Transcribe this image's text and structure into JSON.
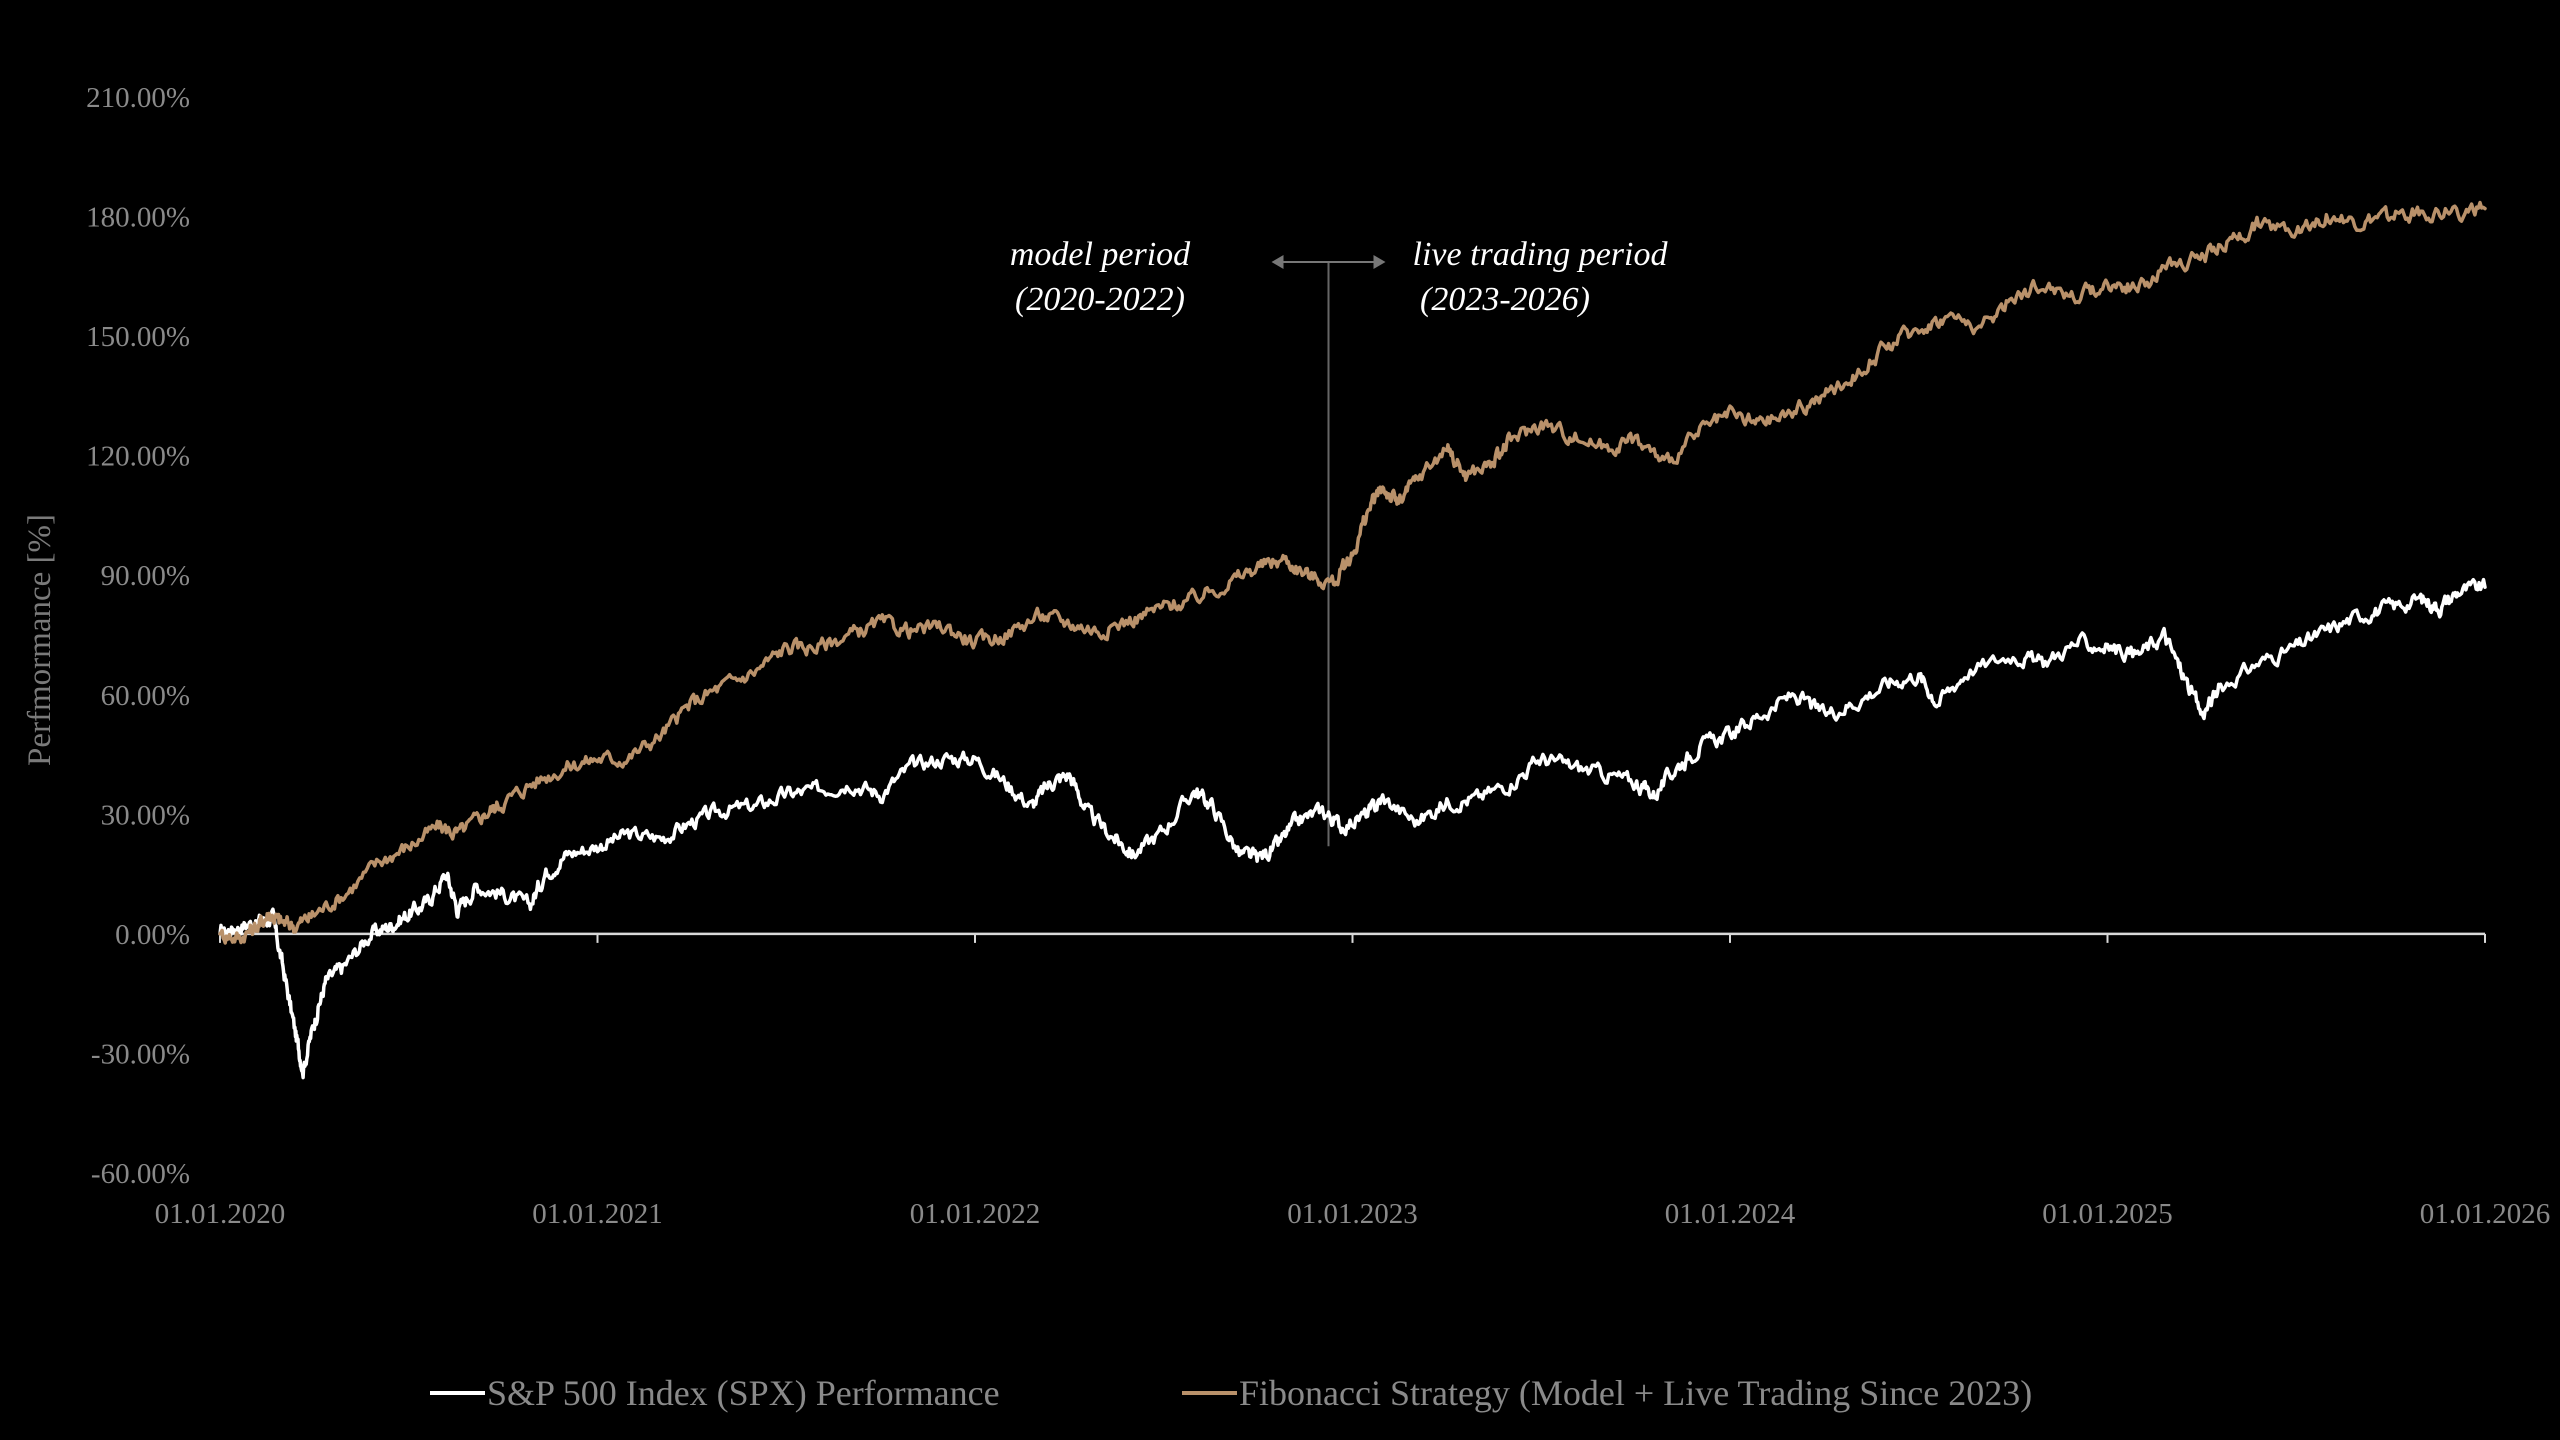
{
  "chart_data": {
    "type": "line",
    "title": "",
    "xlabel": "",
    "ylabel": "Perfmormance [%]",
    "x_tick_labels": [
      "01.01.2020",
      "01.01.2021",
      "01.01.2022",
      "01.01.2023",
      "01.01.2024",
      "01.01.2025",
      "01.01.2026"
    ],
    "y_tick_labels": [
      "210.00%",
      "180.00%",
      "150.00%",
      "120.00%",
      "90.00%",
      "60.00%",
      "30.00%",
      "0.00%",
      "-30.00%",
      "-60.00%"
    ],
    "ylim": [
      -60,
      210
    ],
    "xlim": [
      2020.0,
      2026.0
    ],
    "grid": false,
    "legend_position": "bottom-center",
    "annotations": {
      "left_line1": "model period",
      "left_line2": "(2020-2022)",
      "right_line1": "live trading period",
      "right_line2": "(2023-2026)",
      "divider_x": 2023.0
    },
    "series": [
      {
        "name": "S&P 500 Index (SPX) Performance",
        "color": "#ffffff",
        "points": [
          [
            2020.0,
            0
          ],
          [
            2020.05,
            2
          ],
          [
            2020.1,
            3
          ],
          [
            2020.14,
            4
          ],
          [
            2020.17,
            -10
          ],
          [
            2020.2,
            -25
          ],
          [
            2020.22,
            -34
          ],
          [
            2020.25,
            -22
          ],
          [
            2020.28,
            -12
          ],
          [
            2020.33,
            -8
          ],
          [
            2020.4,
            0
          ],
          [
            2020.45,
            2
          ],
          [
            2020.5,
            5
          ],
          [
            2020.55,
            8
          ],
          [
            2020.6,
            15
          ],
          [
            2020.63,
            6
          ],
          [
            2020.68,
            12
          ],
          [
            2020.75,
            10
          ],
          [
            2020.82,
            7
          ],
          [
            2020.86,
            15
          ],
          [
            2020.92,
            20
          ],
          [
            2021.0,
            22
          ],
          [
            2021.08,
            25
          ],
          [
            2021.17,
            24
          ],
          [
            2021.25,
            28
          ],
          [
            2021.33,
            31
          ],
          [
            2021.42,
            32
          ],
          [
            2021.5,
            35
          ],
          [
            2021.58,
            36
          ],
          [
            2021.67,
            38
          ],
          [
            2021.75,
            35
          ],
          [
            2021.83,
            42
          ],
          [
            2021.92,
            44
          ],
          [
            2022.0,
            44
          ],
          [
            2022.08,
            38
          ],
          [
            2022.15,
            32
          ],
          [
            2022.2,
            38
          ],
          [
            2022.25,
            40
          ],
          [
            2022.3,
            30
          ],
          [
            2022.37,
            24
          ],
          [
            2022.42,
            20
          ],
          [
            2022.5,
            26
          ],
          [
            2022.58,
            36
          ],
          [
            2022.63,
            32
          ],
          [
            2022.7,
            20
          ],
          [
            2022.75,
            19
          ],
          [
            2022.8,
            22
          ],
          [
            2022.85,
            28
          ],
          [
            2022.92,
            31
          ],
          [
            2022.97,
            27
          ],
          [
            2023.04,
            30
          ],
          [
            2023.08,
            34
          ],
          [
            2023.17,
            28
          ],
          [
            2023.25,
            33
          ],
          [
            2023.33,
            34
          ],
          [
            2023.42,
            38
          ],
          [
            2023.5,
            44
          ],
          [
            2023.58,
            42
          ],
          [
            2023.67,
            40
          ],
          [
            2023.75,
            38
          ],
          [
            2023.8,
            35
          ],
          [
            2023.86,
            42
          ],
          [
            2023.92,
            47
          ],
          [
            2024.0,
            50
          ],
          [
            2024.08,
            55
          ],
          [
            2024.17,
            60
          ],
          [
            2024.25,
            55
          ],
          [
            2024.33,
            58
          ],
          [
            2024.42,
            63
          ],
          [
            2024.5,
            65
          ],
          [
            2024.55,
            58
          ],
          [
            2024.63,
            66
          ],
          [
            2024.75,
            70
          ],
          [
            2024.83,
            68
          ],
          [
            2024.92,
            73
          ],
          [
            2025.0,
            72
          ],
          [
            2025.08,
            70
          ],
          [
            2025.15,
            75
          ],
          [
            2025.2,
            65
          ],
          [
            2025.25,
            55
          ],
          [
            2025.3,
            62
          ],
          [
            2025.4,
            68
          ],
          [
            2025.5,
            72
          ],
          [
            2025.58,
            76
          ],
          [
            2025.67,
            80
          ],
          [
            2025.75,
            82
          ],
          [
            2025.83,
            84
          ],
          [
            2025.88,
            82
          ],
          [
            2025.93,
            86
          ],
          [
            2026.0,
            87
          ]
        ]
      },
      {
        "name": "Fibonacci Strategy (Model + Live Trading Since 2023)",
        "color": "#b9916a",
        "points": [
          [
            2020.0,
            0
          ],
          [
            2020.05,
            -1
          ],
          [
            2020.1,
            2
          ],
          [
            2020.13,
            5
          ],
          [
            2020.16,
            3
          ],
          [
            2020.2,
            2
          ],
          [
            2020.25,
            5
          ],
          [
            2020.33,
            10
          ],
          [
            2020.42,
            18
          ],
          [
            2020.5,
            22
          ],
          [
            2020.58,
            27
          ],
          [
            2020.63,
            25
          ],
          [
            2020.7,
            30
          ],
          [
            2020.75,
            33
          ],
          [
            2020.83,
            38
          ],
          [
            2020.92,
            42
          ],
          [
            2021.0,
            44
          ],
          [
            2021.08,
            44
          ],
          [
            2021.17,
            50
          ],
          [
            2021.25,
            58
          ],
          [
            2021.33,
            62
          ],
          [
            2021.42,
            66
          ],
          [
            2021.5,
            72
          ],
          [
            2021.58,
            72
          ],
          [
            2021.67,
            75
          ],
          [
            2021.75,
            78
          ],
          [
            2021.83,
            76
          ],
          [
            2021.92,
            77
          ],
          [
            2022.0,
            73
          ],
          [
            2022.08,
            75
          ],
          [
            2022.17,
            80
          ],
          [
            2022.25,
            78
          ],
          [
            2022.33,
            76
          ],
          [
            2022.42,
            79
          ],
          [
            2022.5,
            82
          ],
          [
            2022.58,
            84
          ],
          [
            2022.67,
            88
          ],
          [
            2022.75,
            92
          ],
          [
            2022.82,
            94
          ],
          [
            2022.88,
            90
          ],
          [
            2022.95,
            88
          ],
          [
            2023.0,
            95
          ],
          [
            2023.04,
            106
          ],
          [
            2023.08,
            112
          ],
          [
            2023.12,
            108
          ],
          [
            2023.17,
            114
          ],
          [
            2023.25,
            122
          ],
          [
            2023.3,
            115
          ],
          [
            2023.37,
            118
          ],
          [
            2023.42,
            124
          ],
          [
            2023.5,
            128
          ],
          [
            2023.58,
            125
          ],
          [
            2023.67,
            122
          ],
          [
            2023.75,
            124
          ],
          [
            2023.83,
            118
          ],
          [
            2023.92,
            126
          ],
          [
            2024.0,
            130
          ],
          [
            2024.08,
            128
          ],
          [
            2024.17,
            131
          ],
          [
            2024.25,
            135
          ],
          [
            2024.33,
            140
          ],
          [
            2024.42,
            148
          ],
          [
            2024.5,
            152
          ],
          [
            2024.58,
            155
          ],
          [
            2024.67,
            152
          ],
          [
            2024.75,
            160
          ],
          [
            2024.83,
            163
          ],
          [
            2024.92,
            160
          ],
          [
            2025.0,
            163
          ],
          [
            2025.08,
            162
          ],
          [
            2025.17,
            168
          ],
          [
            2025.25,
            170
          ],
          [
            2025.33,
            174
          ],
          [
            2025.4,
            178
          ],
          [
            2025.5,
            177
          ],
          [
            2025.58,
            180
          ],
          [
            2025.67,
            178
          ],
          [
            2025.75,
            180
          ],
          [
            2025.83,
            181
          ],
          [
            2025.92,
            181
          ],
          [
            2026.0,
            182
          ]
        ]
      }
    ]
  }
}
